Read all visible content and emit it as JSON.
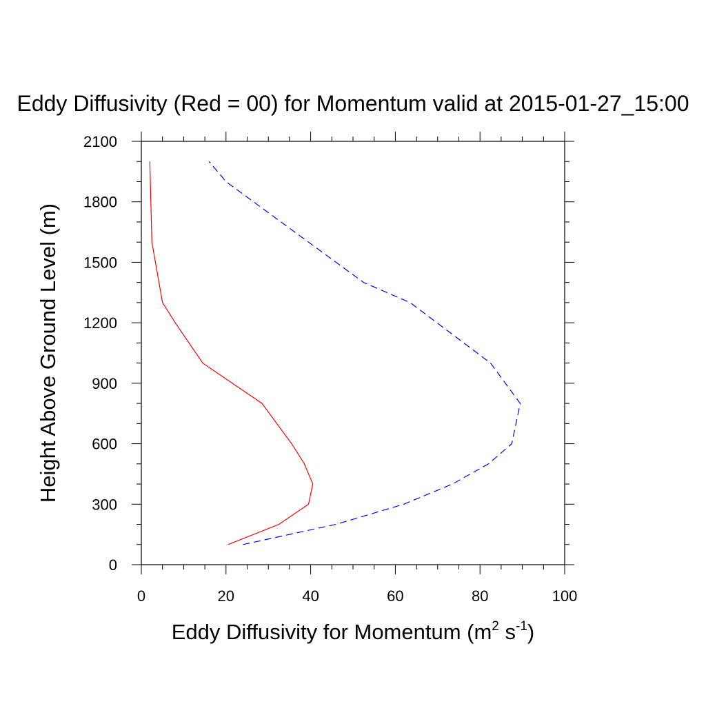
{
  "chart_data": {
    "type": "line",
    "title": "Eddy Diffusivity (Red = 00) for Momentum valid at 2015-01-27_15:00",
    "xlabel": {
      "main": "Eddy Diffusivity for Momentum (m",
      "sup1": "2",
      "mid": " s",
      "sup2": "-1",
      "end": ")"
    },
    "ylabel": "Height Above Ground Level (m)",
    "xlim": [
      0,
      100
    ],
    "ylim": [
      0,
      2100
    ],
    "xticks": [
      0,
      20,
      40,
      60,
      80,
      100
    ],
    "yticks": [
      0,
      300,
      600,
      900,
      1200,
      1500,
      1800,
      2100
    ],
    "x_minor_step": 5,
    "y_minor_step": 100,
    "grid": false,
    "series": [
      {
        "color": "#ff0000",
        "dash": "solid",
        "x": [
          20.5,
          32.5,
          39.5,
          40.5,
          38.5,
          35.5,
          28.5,
          21.5,
          14.5,
          8.0,
          5.0,
          2.5,
          2.0
        ],
        "y": [
          100,
          200,
          300,
          400,
          500,
          600,
          800,
          900,
          1000,
          1200,
          1300,
          1600,
          2000
        ]
      },
      {
        "color": "#0000ff",
        "dash": "dashed",
        "x": [
          24.0,
          46.0,
          62.0,
          73.5,
          82.0,
          87.5,
          89.5,
          82.5,
          63.5,
          52.5,
          39.5,
          20.0,
          16.0
        ],
        "y": [
          100,
          200,
          300,
          400,
          500,
          600,
          800,
          1000,
          1300,
          1400,
          1600,
          1900,
          2000
        ]
      }
    ]
  }
}
